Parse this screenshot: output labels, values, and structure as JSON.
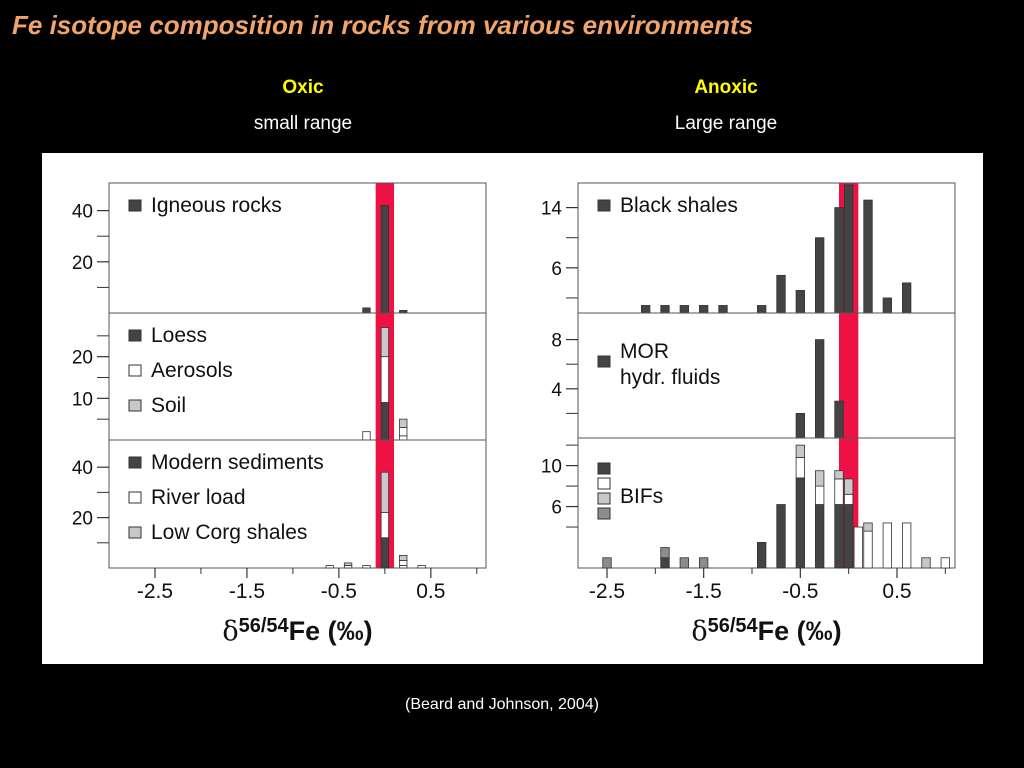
{
  "slide": {
    "title": "Fe isotope composition in rocks from various environments",
    "oxic": {
      "heading": "Oxic",
      "subheading": "small range"
    },
    "anoxic": {
      "heading": "Anoxic",
      "subheading": "Large range"
    },
    "citation": "(Beard and Johnson, 2004)"
  },
  "chart_data": [
    {
      "type": "bar",
      "group": "Oxic",
      "xlabel": "δ56/54Fe (‰)",
      "xlim": [
        -3.0,
        1.1
      ],
      "xticks": [
        -2.5,
        -1.5,
        -0.5,
        0.5
      ],
      "highlight_band": {
        "x": 0.0,
        "width": 0.2,
        "color": "#ee1144"
      },
      "panels": [
        {
          "ylim": [
            0,
            50
          ],
          "yticks": [
            20,
            40
          ],
          "legend": [
            {
              "label": "Igneous rocks",
              "color": "#444444"
            }
          ],
          "bars": [
            {
              "x": -0.2,
              "segments": [
                {
                  "value": 2,
                  "color": "#444444"
                }
              ]
            },
            {
              "x": 0.0,
              "segments": [
                {
                  "value": 42,
                  "color": "#444444"
                }
              ]
            },
            {
              "x": 0.2,
              "segments": [
                {
                  "value": 1,
                  "color": "#444444"
                }
              ]
            }
          ]
        },
        {
          "ylim": [
            0,
            30
          ],
          "yticks": [
            10,
            20
          ],
          "legend": [
            {
              "label": "Loess",
              "color": "#444444"
            },
            {
              "label": "Aerosols",
              "color": "#ffffff"
            },
            {
              "label": "Soil",
              "color": "#c8c8c8"
            }
          ],
          "bars": [
            {
              "x": -0.2,
              "segments": [
                {
                  "value": 2,
                  "color": "#ffffff"
                }
              ]
            },
            {
              "x": 0.0,
              "segments": [
                {
                  "value": 9,
                  "color": "#444444"
                },
                {
                  "value": 11,
                  "color": "#ffffff"
                },
                {
                  "value": 7,
                  "color": "#c8c8c8"
                }
              ]
            },
            {
              "x": 0.2,
              "segments": [
                {
                  "value": 1,
                  "color": "#ffffff"
                },
                {
                  "value": 2,
                  "color": "#ffffff"
                },
                {
                  "value": 2,
                  "color": "#c8c8c8"
                }
              ]
            }
          ]
        },
        {
          "ylim": [
            0,
            50
          ],
          "yticks": [
            20,
            40
          ],
          "legend": [
            {
              "label": "Modern sediments",
              "color": "#444444"
            },
            {
              "label": "River load",
              "color": "#ffffff"
            },
            {
              "label": "Low Corg shales",
              "color": "#c8c8c8"
            }
          ],
          "bars": [
            {
              "x": -0.6,
              "segments": [
                {
                  "value": 1,
                  "color": "#ffffff"
                }
              ]
            },
            {
              "x": -0.4,
              "segments": [
                {
                  "value": 1,
                  "color": "#ffffff"
                },
                {
                  "value": 1,
                  "color": "#c8c8c8"
                }
              ]
            },
            {
              "x": -0.2,
              "segments": [
                {
                  "value": 1,
                  "color": "#ffffff"
                }
              ]
            },
            {
              "x": 0.0,
              "segments": [
                {
                  "value": 12,
                  "color": "#444444"
                },
                {
                  "value": 10,
                  "color": "#ffffff"
                },
                {
                  "value": 16,
                  "color": "#c8c8c8"
                }
              ]
            },
            {
              "x": 0.2,
              "segments": [
                {
                  "value": 1,
                  "color": "#ffffff"
                },
                {
                  "value": 2,
                  "color": "#ffffff"
                },
                {
                  "value": 2,
                  "color": "#c8c8c8"
                }
              ]
            },
            {
              "x": 0.4,
              "segments": [
                {
                  "value": 1,
                  "color": "#ffffff"
                }
              ]
            }
          ]
        }
      ]
    },
    {
      "type": "bar",
      "group": "Anoxic",
      "xlabel": "δ56/54Fe (‰)",
      "xlim": [
        -2.8,
        1.1
      ],
      "xticks": [
        -2.5,
        -1.5,
        -0.5,
        0.5
      ],
      "highlight_band": {
        "x": 0.0,
        "width": 0.2,
        "color": "#ee1144"
      },
      "panels": [
        {
          "ylim": [
            0,
            17
          ],
          "yticks": [
            6,
            14
          ],
          "legend": [
            {
              "label": "Black shales",
              "color": "#444444"
            }
          ],
          "bars": [
            {
              "x": -2.1,
              "segments": [
                {
                  "value": 1,
                  "color": "#444444"
                }
              ]
            },
            {
              "x": -1.9,
              "segments": [
                {
                  "value": 1,
                  "color": "#444444"
                }
              ]
            },
            {
              "x": -1.7,
              "segments": [
                {
                  "value": 1,
                  "color": "#444444"
                }
              ]
            },
            {
              "x": -1.5,
              "segments": [
                {
                  "value": 1,
                  "color": "#444444"
                }
              ]
            },
            {
              "x": -1.3,
              "segments": [
                {
                  "value": 1,
                  "color": "#444444"
                }
              ]
            },
            {
              "x": -0.9,
              "segments": [
                {
                  "value": 1,
                  "color": "#444444"
                }
              ]
            },
            {
              "x": -0.7,
              "segments": [
                {
                  "value": 5,
                  "color": "#444444"
                }
              ]
            },
            {
              "x": -0.5,
              "segments": [
                {
                  "value": 3,
                  "color": "#444444"
                }
              ]
            },
            {
              "x": -0.3,
              "segments": [
                {
                  "value": 10,
                  "color": "#444444"
                }
              ]
            },
            {
              "x": -0.1,
              "segments": [
                {
                  "value": 14,
                  "color": "#444444"
                }
              ]
            },
            {
              "x": 0.0,
              "segments": [
                {
                  "value": 17,
                  "color": "#444444"
                }
              ]
            },
            {
              "x": 0.2,
              "segments": [
                {
                  "value": 15,
                  "color": "#444444"
                }
              ]
            },
            {
              "x": 0.4,
              "segments": [
                {
                  "value": 2,
                  "color": "#444444"
                }
              ]
            },
            {
              "x": 0.6,
              "segments": [
                {
                  "value": 4,
                  "color": "#444444"
                }
              ]
            }
          ]
        },
        {
          "ylim": [
            0,
            10
          ],
          "yticks": [
            4,
            8
          ],
          "legend": [
            {
              "label": "MOR",
              "color": "#444444"
            }
          ],
          "legend_extra": "hydr. fluids",
          "bars": [
            {
              "x": -0.5,
              "segments": [
                {
                  "value": 2,
                  "color": "#444444"
                }
              ]
            },
            {
              "x": -0.3,
              "segments": [
                {
                  "value": 8,
                  "color": "#444444"
                }
              ]
            },
            {
              "x": -0.1,
              "segments": [
                {
                  "value": 3,
                  "color": "#444444"
                }
              ]
            }
          ]
        },
        {
          "ylim": [
            0,
            12.5
          ],
          "yticks": [
            6,
            10
          ],
          "legend": [
            {
              "label": "BIFs",
              "color": "#444444"
            },
            {
              "label": "",
              "color": "#ffffff"
            },
            {
              "label": "",
              "color": "#c8c8c8"
            },
            {
              "label": "",
              "color": "#8c8c8c"
            }
          ],
          "bars": [
            {
              "x": -2.5,
              "segments": [
                {
                  "value": 1,
                  "color": "#8c8c8c"
                }
              ]
            },
            {
              "x": -1.9,
              "segments": [
                {
                  "value": 1,
                  "color": "#444444"
                },
                {
                  "value": 1,
                  "color": "#8c8c8c"
                }
              ]
            },
            {
              "x": -1.7,
              "segments": [
                {
                  "value": 1,
                  "color": "#8c8c8c"
                }
              ]
            },
            {
              "x": -1.5,
              "segments": [
                {
                  "value": 1,
                  "color": "#8c8c8c"
                }
              ]
            },
            {
              "x": -0.9,
              "segments": [
                {
                  "value": 2.5,
                  "color": "#444444"
                }
              ]
            },
            {
              "x": -0.7,
              "segments": [
                {
                  "value": 6.2,
                  "color": "#444444"
                }
              ]
            },
            {
              "x": -0.5,
              "segments": [
                {
                  "value": 8.8,
                  "color": "#444444"
                },
                {
                  "value": 2,
                  "color": "#ffffff"
                },
                {
                  "value": 1.2,
                  "color": "#c8c8c8"
                }
              ]
            },
            {
              "x": -0.3,
              "segments": [
                {
                  "value": 6.2,
                  "color": "#444444"
                },
                {
                  "value": 1.8,
                  "color": "#ffffff"
                },
                {
                  "value": 1.5,
                  "color": "#c8c8c8"
                }
              ]
            },
            {
              "x": -0.1,
              "segments": [
                {
                  "value": 6.2,
                  "color": "#444444"
                },
                {
                  "value": 2.5,
                  "color": "#ffffff"
                },
                {
                  "value": 0.8,
                  "color": "#c8c8c8"
                }
              ]
            },
            {
              "x": 0.0,
              "segments": [
                {
                  "value": 6.2,
                  "color": "#444444"
                },
                {
                  "value": 1,
                  "color": "#ffffff"
                },
                {
                  "value": 1.5,
                  "color": "#c8c8c8"
                }
              ]
            },
            {
              "x": 0.1,
              "segments": [
                {
                  "value": 4,
                  "color": "#ffffff"
                }
              ]
            },
            {
              "x": 0.2,
              "segments": [
                {
                  "value": 3.6,
                  "color": "#ffffff"
                },
                {
                  "value": 0.8,
                  "color": "#c8c8c8"
                }
              ]
            },
            {
              "x": 0.4,
              "segments": [
                {
                  "value": 4.4,
                  "color": "#ffffff"
                }
              ]
            },
            {
              "x": 0.6,
              "segments": [
                {
                  "value": 4.4,
                  "color": "#ffffff"
                }
              ]
            },
            {
              "x": 0.8,
              "segments": [
                {
                  "value": 1,
                  "color": "#c8c8c8"
                }
              ]
            },
            {
              "x": 1.0,
              "segments": [
                {
                  "value": 1,
                  "color": "#ffffff"
                }
              ]
            }
          ]
        }
      ]
    }
  ]
}
